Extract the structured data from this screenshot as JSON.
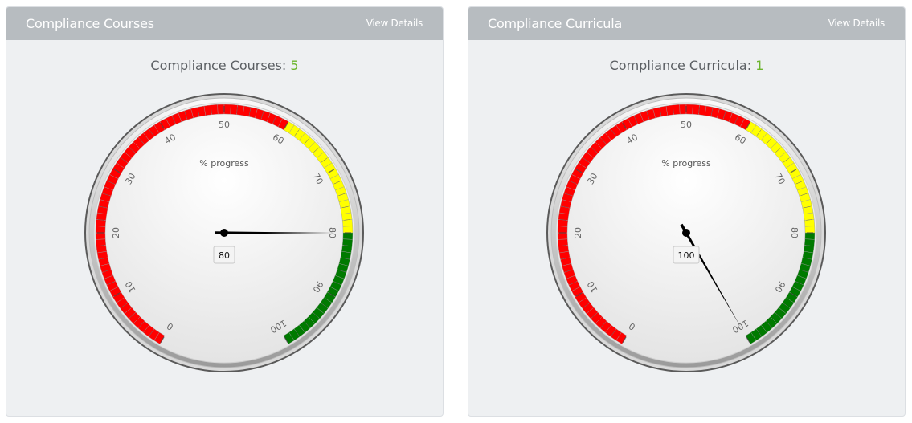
{
  "colors": {
    "header_bg": "#b7bcc0",
    "panel_bg": "#eef0f2",
    "count_green": "#6cb52d",
    "band_red": "#ff0000",
    "band_yellow": "#ffff00",
    "band_green": "#007a00"
  },
  "panels": [
    {
      "title": "Compliance Courses",
      "view_details_label": "View Details",
      "summary_label": "Compliance Courses:",
      "summary_count": "5",
      "gauge": {
        "title": "% progress",
        "min": 0,
        "max": 100,
        "value": 80,
        "value_label": "80",
        "tick_labels": [
          "0",
          "10",
          "20",
          "30",
          "40",
          "50",
          "60",
          "70",
          "80",
          "90",
          "100"
        ],
        "bands": [
          {
            "from": 0,
            "to": 60,
            "color": "#ff0000"
          },
          {
            "from": 60,
            "to": 80,
            "color": "#ffff00"
          },
          {
            "from": 80,
            "to": 100,
            "color": "#007a00"
          }
        ]
      }
    },
    {
      "title": "Compliance Curricula",
      "view_details_label": "View Details",
      "summary_label": "Compliance Curricula:",
      "summary_count": "1",
      "gauge": {
        "title": "% progress",
        "min": 0,
        "max": 100,
        "value": 100,
        "value_label": "100",
        "tick_labels": [
          "0",
          "10",
          "20",
          "30",
          "40",
          "50",
          "60",
          "70",
          "80",
          "90",
          "100"
        ],
        "bands": [
          {
            "from": 0,
            "to": 60,
            "color": "#ff0000"
          },
          {
            "from": 60,
            "to": 80,
            "color": "#ffff00"
          },
          {
            "from": 80,
            "to": 100,
            "color": "#007a00"
          }
        ]
      }
    }
  ]
}
